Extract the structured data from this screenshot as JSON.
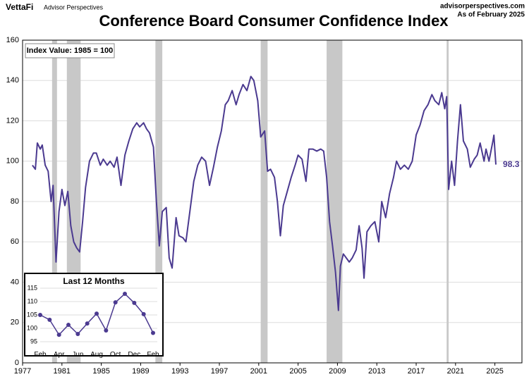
{
  "header": {
    "brand": "VettaFi",
    "brand_sub": "Advisor Perspectives",
    "site": "advisorperspectives.com",
    "as_of": "As of February 2025"
  },
  "chart_data": [
    {
      "type": "line",
      "title": "Conference Board Consumer Confidence Index",
      "annotation": "Index Value: 1985 = 100",
      "color": "#4b3a90",
      "band_color": "#c8c8c8",
      "xlim": [
        1977,
        2027.75
      ],
      "ylim": [
        0,
        160
      ],
      "xticks": [
        1977,
        1981,
        1985,
        1989,
        1993,
        1997,
        2001,
        2005,
        2009,
        2013,
        2017,
        2021,
        2025
      ],
      "yticks": [
        0,
        20,
        40,
        60,
        80,
        100,
        120,
        140,
        160
      ],
      "grid": true,
      "recessions": [
        [
          1980.0,
          1980.5
        ],
        [
          1981.5,
          1982.9
        ],
        [
          1990.5,
          1991.2
        ],
        [
          2001.2,
          2001.9
        ],
        [
          2007.9,
          2009.5
        ],
        [
          2020.1,
          2020.3
        ]
      ],
      "x": [
        1978.0,
        1978.3,
        1978.5,
        1978.8,
        1979.0,
        1979.3,
        1979.6,
        1979.9,
        1980.1,
        1980.4,
        1980.7,
        1981.0,
        1981.3,
        1981.6,
        1981.9,
        1982.2,
        1982.5,
        1982.8,
        1983.1,
        1983.4,
        1983.8,
        1984.2,
        1984.5,
        1984.9,
        1985.2,
        1985.6,
        1985.9,
        1986.3,
        1986.6,
        1987.0,
        1987.4,
        1987.8,
        1988.2,
        1988.6,
        1988.9,
        1989.3,
        1989.6,
        1989.9,
        1990.3,
        1990.6,
        1990.9,
        1991.2,
        1991.6,
        1991.9,
        1992.2,
        1992.6,
        1992.9,
        1993.3,
        1993.6,
        1994.0,
        1994.4,
        1994.8,
        1995.2,
        1995.6,
        1996.0,
        1996.4,
        1996.8,
        1997.2,
        1997.6,
        1997.9,
        1998.3,
        1998.7,
        1999.0,
        1999.4,
        1999.8,
        2000.2,
        2000.5,
        2000.9,
        2001.2,
        2001.6,
        2001.9,
        2002.2,
        2002.6,
        2002.9,
        2003.2,
        2003.5,
        2003.9,
        2004.3,
        2004.7,
        2005.0,
        2005.4,
        2005.8,
        2006.1,
        2006.5,
        2006.9,
        2007.3,
        2007.6,
        2007.9,
        2008.2,
        2008.5,
        2008.8,
        2009.1,
        2009.3,
        2009.6,
        2009.9,
        2010.2,
        2010.5,
        2010.9,
        2011.2,
        2011.5,
        2011.7,
        2012.0,
        2012.4,
        2012.8,
        2013.2,
        2013.5,
        2013.9,
        2014.3,
        2014.7,
        2015.0,
        2015.4,
        2015.8,
        2016.2,
        2016.6,
        2017.0,
        2017.4,
        2017.8,
        2018.2,
        2018.6,
        2018.9,
        2019.3,
        2019.6,
        2019.9,
        2020.1,
        2020.3,
        2020.6,
        2020.9,
        2021.2,
        2021.5,
        2021.8,
        2022.2,
        2022.5,
        2022.9,
        2023.2,
        2023.5,
        2023.9,
        2024.1,
        2024.4,
        2024.8,
        2024.9,
        2025.0,
        2025.1
      ],
      "values": [
        98,
        96,
        109,
        106,
        108,
        98,
        95,
        80,
        88,
        50,
        75,
        86,
        78,
        85,
        68,
        60,
        57,
        55,
        70,
        87,
        100,
        104,
        104,
        98,
        101,
        98,
        100,
        97,
        102,
        88,
        103,
        110,
        116,
        119,
        117,
        119,
        116,
        114,
        107,
        80,
        58,
        75,
        77,
        52,
        47,
        72,
        63,
        62,
        60,
        75,
        90,
        98,
        102,
        100,
        88,
        97,
        107,
        115,
        128,
        130,
        135,
        128,
        133,
        138,
        135,
        142,
        140,
        130,
        112,
        115,
        95,
        96,
        92,
        80,
        63,
        78,
        85,
        92,
        98,
        103,
        101,
        90,
        106,
        106,
        105,
        106,
        105,
        92,
        70,
        58,
        45,
        26,
        48,
        54,
        52,
        50,
        52,
        56,
        68,
        57,
        42,
        65,
        68,
        70,
        60,
        80,
        72,
        84,
        92,
        100,
        96,
        98,
        96,
        100,
        113,
        118,
        125,
        128,
        133,
        130,
        128,
        134,
        126,
        132,
        86,
        100,
        88,
        110,
        128,
        110,
        106,
        97,
        101,
        103,
        109,
        100,
        106,
        100,
        110,
        112.9,
        105.3,
        98.3
      ]
    },
    {
      "type": "line",
      "title": "Last 12 Months",
      "color": "#4b3a90",
      "categories": [
        "Feb",
        null,
        "Apr",
        null,
        "Jun",
        null,
        "Aug",
        null,
        "Oct",
        null,
        "Dec",
        null,
        "Feb"
      ],
      "values": [
        105,
        103.2,
        97.6,
        101.3,
        97.9,
        101.8,
        105.5,
        99.2,
        109.7,
        112.9,
        109.5,
        105.3,
        98.3
      ],
      "ylim": [
        93,
        117
      ],
      "yticks": [
        95,
        100,
        105,
        110,
        115
      ]
    }
  ]
}
